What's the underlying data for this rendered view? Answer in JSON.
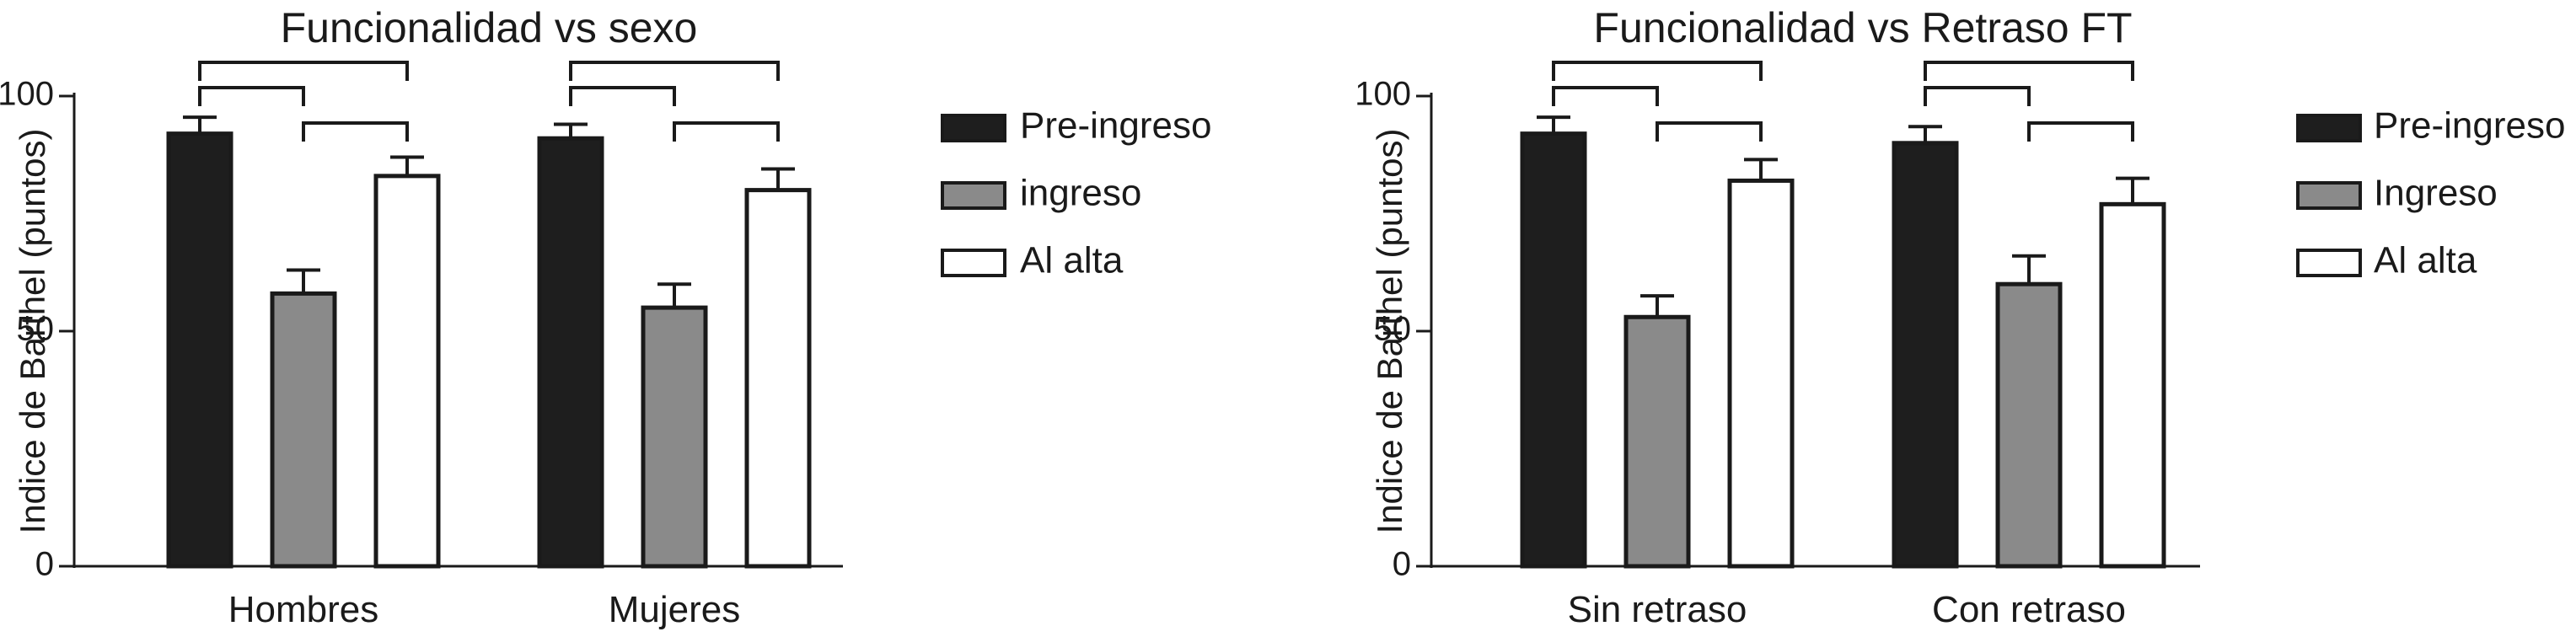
{
  "colors": {
    "dark": "#1e1e1e",
    "gray": "#8a8a8a",
    "white": "#ffffff",
    "stroke": "#1a1a1a"
  },
  "chart_data": [
    {
      "type": "bar",
      "title": "Funcionalidad vs sexo",
      "xlabel": "",
      "ylabel": "Indice de Barthel (puntos)",
      "ylim": [
        0,
        100
      ],
      "yticks": [
        0,
        50,
        100
      ],
      "grid": false,
      "legend_position": "right",
      "error_bars": true,
      "significance_brackets": true,
      "categories": [
        "Hombres",
        "Mujeres"
      ],
      "series": [
        {
          "name": "Pre-ingreso",
          "color": "dark",
          "values": [
            92,
            91
          ],
          "errors": [
            3.5,
            3
          ]
        },
        {
          "name": "ingreso",
          "color": "gray",
          "values": [
            58,
            55
          ],
          "errors": [
            5,
            5
          ]
        },
        {
          "name": "Al alta",
          "color": "white",
          "values": [
            83,
            80
          ],
          "errors": [
            4,
            4.5
          ]
        }
      ]
    },
    {
      "type": "bar",
      "title": "Funcionalidad vs Retraso FT",
      "xlabel": "",
      "ylabel": "Indice de Barthel (puntos)",
      "ylim": [
        0,
        100
      ],
      "yticks": [
        0,
        50,
        100
      ],
      "grid": false,
      "legend_position": "right",
      "error_bars": true,
      "significance_brackets": true,
      "categories": [
        "Sin retraso",
        "Con retraso"
      ],
      "series": [
        {
          "name": "Pre-ingreso",
          "color": "dark",
          "values": [
            92,
            90
          ],
          "errors": [
            3.5,
            3.5
          ]
        },
        {
          "name": "Ingreso",
          "color": "gray",
          "values": [
            53,
            60
          ],
          "errors": [
            4.5,
            6
          ]
        },
        {
          "name": "Al alta",
          "color": "white",
          "values": [
            82,
            77
          ],
          "errors": [
            4.5,
            5.5
          ]
        }
      ]
    }
  ]
}
